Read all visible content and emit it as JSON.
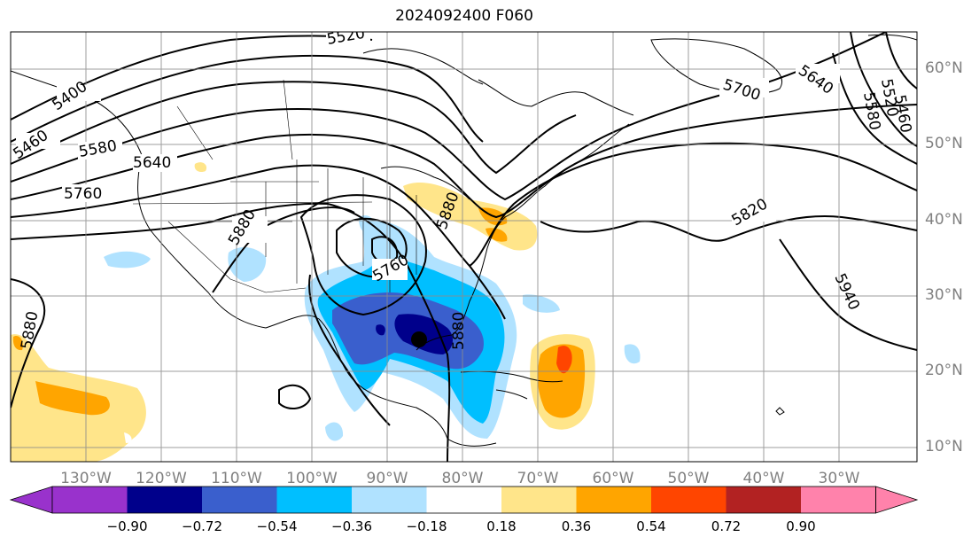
{
  "title": "2024092400 F060",
  "lon_labels": [
    "130°W",
    "120°W",
    "110°W",
    "100°W",
    "90°W",
    "80°W",
    "70°W",
    "60°W",
    "50°W",
    "40°W",
    "30°W"
  ],
  "lat_labels": [
    "60°N",
    "50°N",
    "40°N",
    "30°N",
    "20°N",
    "10°N"
  ],
  "contour_labels": [
    "5520",
    "5460",
    "5400",
    "5580",
    "5640",
    "5760",
    "5880",
    "5700",
    "5640",
    "5580",
    "5520",
    "5460",
    "5820",
    "5940",
    "5760",
    "5880",
    "5880",
    "5880"
  ],
  "colorbar": {
    "ticks": [
      "−0.90",
      "−0.72",
      "−0.54",
      "−0.36",
      "−0.18",
      "0.18",
      "0.36",
      "0.54",
      "0.72",
      "0.90"
    ],
    "colors": [
      "#9932cc",
      "#00008b",
      "#3a5fcd",
      "#00bfff",
      "#b0e2ff",
      "#ffffff",
      "#ffe58a",
      "#ffa500",
      "#ff4500",
      "#b22222",
      "#ff82ab"
    ]
  }
}
